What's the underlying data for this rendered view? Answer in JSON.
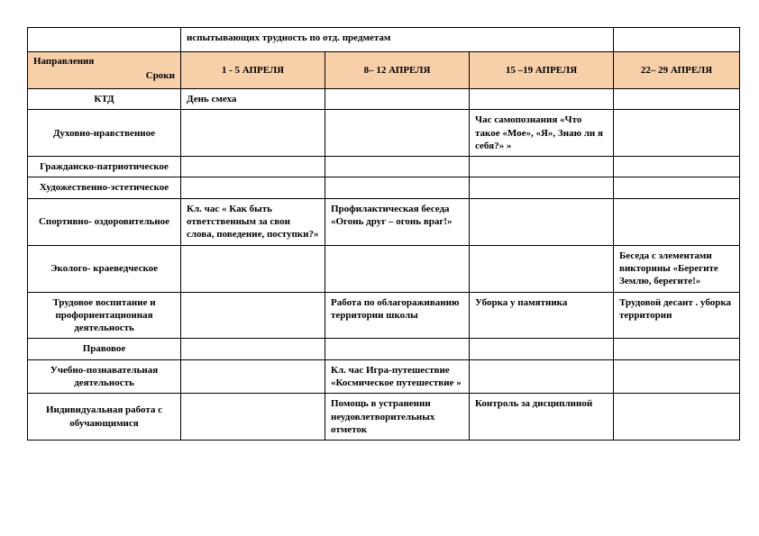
{
  "top_note": "испытывающих трудность по отд. предметам",
  "header": {
    "dir_label": "Направления",
    "dates_label": "Сроки",
    "cols": [
      "1 - 5 АПРЕЛЯ",
      "8– 12 АПРЕЛЯ",
      "15 –19 АПРЕЛЯ",
      "22– 29 АПРЕЛЯ"
    ]
  },
  "rows": [
    {
      "label": "КТД",
      "cells": [
        "День смеха",
        "",
        "",
        ""
      ]
    },
    {
      "label": "Духовно-нравственное",
      "cells": [
        "",
        "",
        "Час самопознания «Что такое «Мое», «Я», Знаю ли я себя?» »",
        ""
      ]
    },
    {
      "label": "Гражданско-патриотическое",
      "cells": [
        "",
        "",
        "",
        ""
      ]
    },
    {
      "label": "Художественно-эстетическое",
      "cells": [
        "",
        "",
        "",
        ""
      ]
    },
    {
      "label": "Спортивно- оздоровительное",
      "cells": [
        "Кл. час « Как быть ответственным за свои слова, поведение, поступки?»",
        "Профилактическая беседа «Огонь друг – огонь враг!»",
        "",
        ""
      ]
    },
    {
      "label": "Эколого- краеведческое",
      "cells": [
        "",
        "",
        "",
        "Беседа с элементами викторины «Берегите Землю, берегите!»"
      ]
    },
    {
      "label": "Трудовое воспитание и профориентационная деятельность",
      "cells": [
        "",
        "Работа по облагораживанию территории школы",
        "Уборка у памятника",
        "Трудовой десант . уборка территории"
      ]
    },
    {
      "label": "Правовое",
      "cells": [
        "",
        "",
        "",
        ""
      ]
    },
    {
      "label": "Учебно-познавательная деятельность",
      "cells": [
        "",
        "Кл. час Игра-путешествие «Космическое путешествие »",
        "",
        ""
      ]
    },
    {
      "label": "Индивидуальная работа с обучающимися",
      "cells": [
        "",
        "Помощь в устранении неудовлетворительных отметок",
        "Контроль за дисциплиной",
        ""
      ]
    }
  ],
  "colors": {
    "header_bg": "#f7cfa9",
    "border": "#000000",
    "text": "#000000",
    "background": "#ffffff"
  },
  "fontsize": 11
}
